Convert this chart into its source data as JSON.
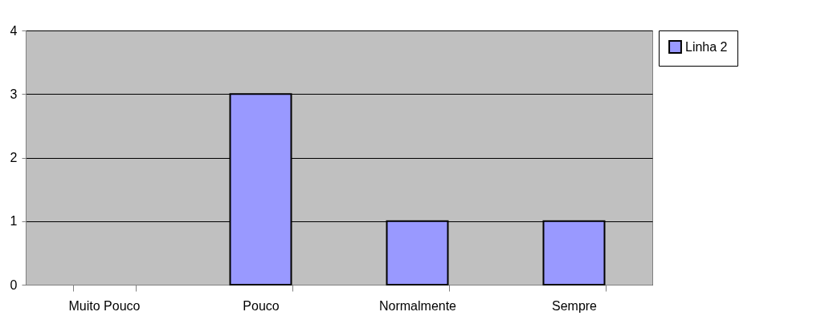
{
  "chart_data": {
    "type": "bar",
    "categories": [
      "Muito Pouco",
      "Pouco",
      "Normalmente",
      "Sempre"
    ],
    "series": [
      {
        "name": "Linha 2",
        "color": "#9999ff",
        "values": [
          0,
          3,
          1,
          1
        ]
      }
    ],
    "ylim": [
      0,
      4
    ],
    "yticks": [
      0,
      1,
      2,
      3,
      4
    ],
    "grid": "y",
    "legend": "right"
  }
}
